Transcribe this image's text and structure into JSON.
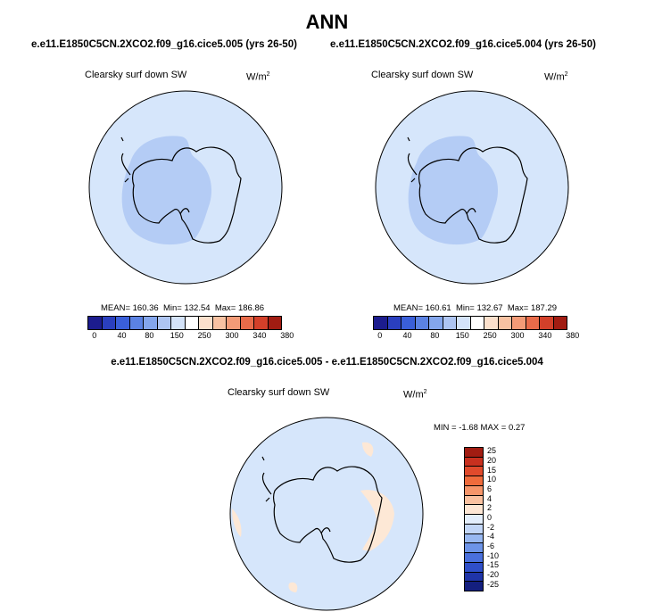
{
  "title": "ANN",
  "panels": [
    {
      "case": "e.e11.E1850C5CN.2XCO2.f09_g16.cice5.005 (yrs 26-50)",
      "variable": "Clearsky surf down SW",
      "units_base": "W/m",
      "units_exp": "2",
      "mean_label": "MEAN=",
      "mean": "160.36",
      "min_label": "Min=",
      "min": "132.54",
      "max_label": "Max=",
      "max": "186.86"
    },
    {
      "case": "e.e11.E1850C5CN.2XCO2.f09_g16.cice5.004 (yrs 26-50)",
      "variable": "Clearsky surf down SW",
      "units_base": "W/m",
      "units_exp": "2",
      "mean_label": "MEAN=",
      "mean": "160.61",
      "min_label": "Min=",
      "min": "132.67",
      "max_label": "Max=",
      "max": "187.29"
    }
  ],
  "difference": {
    "title": "e.e11.E1850C5CN.2XCO2.f09_g16.cice5.005 - e.e11.E1850C5CN.2XCO2.f09_g16.cice5.004",
    "variable": "Clearsky surf down SW",
    "units_base": "W/m",
    "units_exp": "2",
    "min_label": "MIN =",
    "min": "-1.68",
    "max_label": "MAX =",
    "max": "0.27"
  },
  "colorbar_main": {
    "colors": [
      "#1c1c8e",
      "#2a3fbf",
      "#3a5fd9",
      "#5b82e3",
      "#84a6ec",
      "#aec5f2",
      "#d4e3f9",
      "#ffffff",
      "#fbe0cc",
      "#f8c2a2",
      "#f39b77",
      "#e86b4a",
      "#d3402a",
      "#a11c12"
    ],
    "tick_labels": [
      "0",
      "40",
      "80",
      "150",
      "250",
      "300",
      "340",
      "380"
    ]
  },
  "colorbar_diff": {
    "colors": [
      "#a11c12",
      "#c8301f",
      "#e04a2c",
      "#ef6b3c",
      "#f6956a",
      "#fac1a0",
      "#fde6d4",
      "#e3eefc",
      "#c2d6f7",
      "#98b8f1",
      "#6d94e8",
      "#4a70dd",
      "#2f4fc9",
      "#1f34a8",
      "#141f7f"
    ],
    "tick_labels": [
      "25",
      "20",
      "15",
      "10",
      "6",
      "4",
      "2",
      "0",
      "-2",
      "-4",
      "-6",
      "-10",
      "-15",
      "-20",
      "-25"
    ]
  },
  "map_colors": {
    "ocean": "#d6e6fb",
    "band": "#b4ccf5",
    "pos": "#fde8d6",
    "outline": "#000000"
  }
}
